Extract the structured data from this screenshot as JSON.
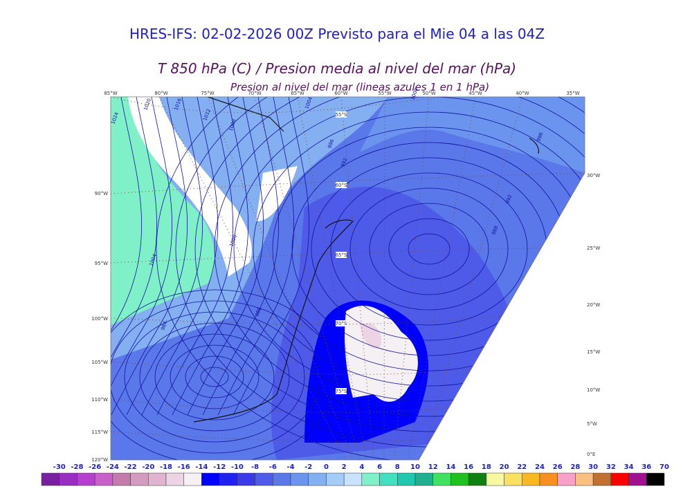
{
  "title": "HRES-IFS: 02-02-2026 00Z Previsto para el Mie 04 a las 04Z",
  "subtitle": "T 850 hPa (C) / Presion media al nivel del mar (hPa)",
  "caption": "Presion al nivel del mar (lineas azules 1 en 1 hPa)",
  "lon_labels_top": [
    "85°W",
    "80°W",
    "75°W",
    "70°W",
    "65°W",
    "60°W",
    "55°W",
    "50°W",
    "45°W",
    "40°W",
    "35°W"
  ],
  "lon_labels_left": [
    "90°W",
    "95°W",
    "100°W",
    "105°W",
    "110°W",
    "115°W",
    "120°W"
  ],
  "lon_labels_right": [
    "30°W",
    "25°W",
    "20°W",
    "15°W",
    "10°W",
    "5°W",
    "0°E"
  ],
  "lat_labels": [
    "55°S",
    "60°S",
    "65°S",
    "70°S",
    "75°S"
  ],
  "isobar_labels": [
    "1024",
    "1020",
    "1016",
    "1012",
    "1008",
    "1004",
    "1000",
    "996",
    "992",
    "988",
    "984",
    "1004",
    "1000",
    "996",
    "992",
    "988"
  ],
  "colorbar": {
    "labels": [
      "-30",
      "-28",
      "-26",
      "-24",
      "-22",
      "-20",
      "-18",
      "-16",
      "-14",
      "-12",
      "-10",
      "-8",
      "-6",
      "-4",
      "-2",
      "0",
      "2",
      "4",
      "6",
      "8",
      "10",
      "12",
      "14",
      "16",
      "18",
      "20",
      "22",
      "24",
      "26",
      "28",
      "30",
      "32",
      "34",
      "36",
      "70"
    ],
    "colors": [
      "#7b1fa2",
      "#9a2dc2",
      "#b540d0",
      "#c860c8",
      "#c47aaa",
      "#d49ac0",
      "#e0b4d0",
      "#ecd4e4",
      "#f4f0f4",
      "#0000ff",
      "#2020f0",
      "#3a3ae8",
      "#4e5ae8",
      "#5a78ea",
      "#6a94ee",
      "#84b0f2",
      "#a4ccf8",
      "#c8e4fc",
      "#80f0c8",
      "#40e0c0",
      "#20c8b0",
      "#20b090",
      "#40e060",
      "#20c020",
      "#108010",
      "#f8f8a0",
      "#f8e060",
      "#f8b820",
      "#f89020",
      "#f8a0c8",
      "#f8c080",
      "#c07030",
      "#ff0000",
      "#a01090",
      "#000000"
    ]
  }
}
